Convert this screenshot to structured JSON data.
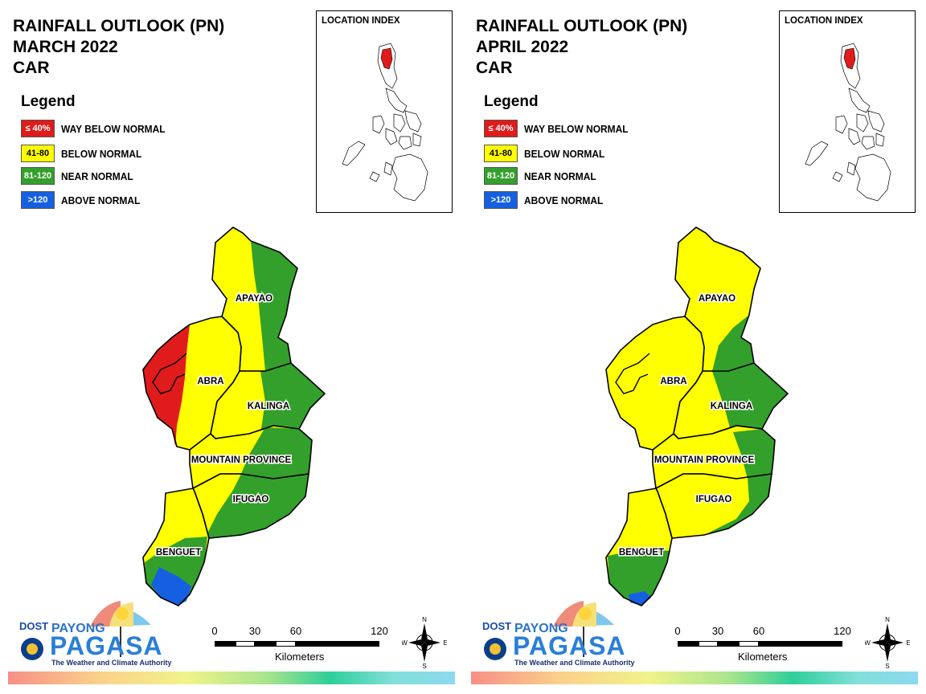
{
  "panels": [
    {
      "title_lines": [
        "RAINFALL OUTLOOK (PN)",
        "MARCH 2022",
        "CAR"
      ],
      "legend": {
        "title": "Legend",
        "items": [
          {
            "range": "≤ 40%",
            "label": "WAY BELOW NORMAL",
            "color": "#e01b1b",
            "text_color": "#ffffff"
          },
          {
            "range": "41-80",
            "label": "BELOW NORMAL",
            "color": "#ffff00",
            "text_color": "#000000"
          },
          {
            "range": "81-120",
            "label": "NEAR NORMAL",
            "color": "#33a02c",
            "text_color": "#ffffff"
          },
          {
            "range": ">120",
            "label": "ABOVE NORMAL",
            "color": "#1560e0",
            "text_color": "#ffffff"
          }
        ]
      },
      "inset_title": "LOCATION INDEX",
      "provinces": [
        "APAYAO",
        "ABRA",
        "KALINGA",
        "MOUNTAIN PROVINCE",
        "IFUGAO",
        "BENGUET"
      ],
      "scale": {
        "ticks": [
          "0",
          "30",
          "60",
          "120"
        ],
        "unit": "Kilometers"
      },
      "compass": {
        "n": "N",
        "s": "S",
        "e": "E",
        "w": "W"
      },
      "logo": {
        "agency": "DOST",
        "payong": "PAYONG",
        "pagasa": "PAGASA",
        "tagline": "The Weather and Climate Authority"
      }
    },
    {
      "title_lines": [
        "RAINFALL OUTLOOK (PN)",
        "APRIL 2022",
        "CAR"
      ],
      "legend": {
        "title": "Legend",
        "items": [
          {
            "range": "≤ 40%",
            "label": "WAY BELOW NORMAL",
            "color": "#e01b1b",
            "text_color": "#ffffff"
          },
          {
            "range": "41-80",
            "label": "BELOW NORMAL",
            "color": "#ffff00",
            "text_color": "#000000"
          },
          {
            "range": "81-120",
            "label": "NEAR NORMAL",
            "color": "#33a02c",
            "text_color": "#ffffff"
          },
          {
            "range": ">120",
            "label": "ABOVE NORMAL",
            "color": "#1560e0",
            "text_color": "#ffffff"
          }
        ]
      },
      "inset_title": "LOCATION INDEX",
      "provinces": [
        "APAYAO",
        "ABRA",
        "KALINGA",
        "MOUNTAIN PROVINCE",
        "IFUGAO",
        "BENGUET"
      ],
      "scale": {
        "ticks": [
          "0",
          "30",
          "60",
          "120"
        ],
        "unit": "Kilometers"
      },
      "compass": {
        "n": "N",
        "s": "S",
        "e": "E",
        "w": "W"
      },
      "logo": {
        "agency": "DOST",
        "payong": "PAYONG",
        "pagasa": "PAGASA",
        "tagline": "The Weather and Climate Authority"
      }
    }
  ],
  "colors": {
    "way_below": "#e01b1b",
    "below": "#ffff00",
    "near": "#33a02c",
    "above": "#1560e0"
  }
}
